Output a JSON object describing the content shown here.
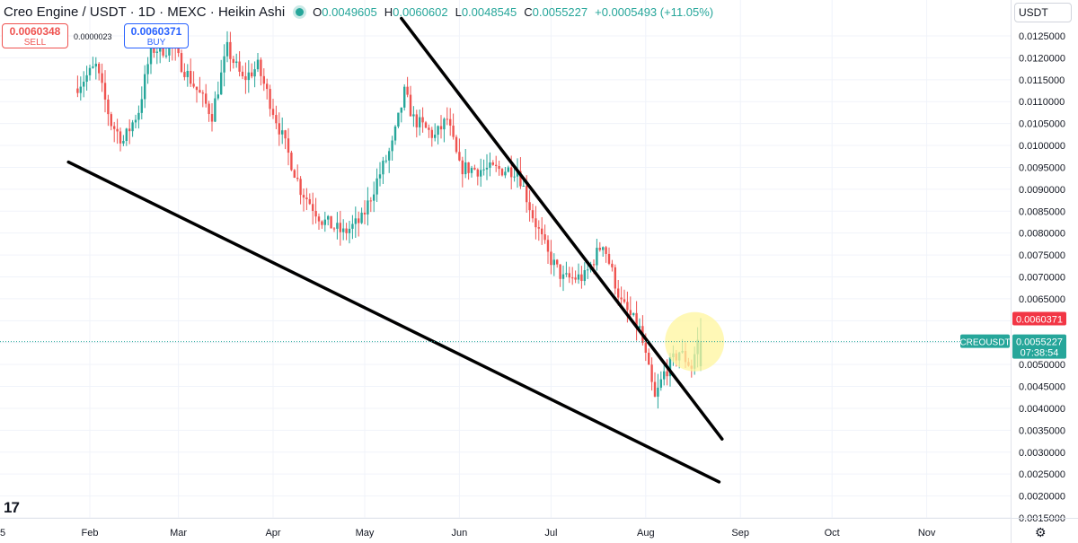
{
  "header": {
    "title": "Creo Engine / USDT · 1D · MEXC · Heikin Ashi",
    "ohlc": [
      {
        "k": "O",
        "v": "0.0049605"
      },
      {
        "k": "H",
        "v": "0.0060602"
      },
      {
        "k": "L",
        "v": "0.0048545"
      },
      {
        "k": "C",
        "v": "0.0055227"
      }
    ],
    "change": "+0.0005493 (+11.05%)"
  },
  "trade": {
    "sell_price": "0.0060348",
    "sell_label": "SELL",
    "spread": "0.0000023",
    "buy_price": "0.0060371",
    "buy_label": "BUY"
  },
  "currency_button": "USDT",
  "footer": {
    "left_partial_label": "5",
    "logo": "17",
    "settings_icon": "gear-icon"
  },
  "colors": {
    "up": "#26a69a",
    "down": "#ef5350",
    "trendline": "#000000",
    "highlight": "#fff59d",
    "price_tag_red": "#f23645"
  },
  "chart_data": {
    "type": "candlestick",
    "chart_style": "Heikin Ashi",
    "symbol": "CREOUSDT",
    "x_labels": [
      "Feb",
      "Mar",
      "Apr",
      "May",
      "Jun",
      "Jul",
      "Aug",
      "Sep",
      "Oct",
      "Nov"
    ],
    "y_axis_labels": [
      "0.0125000",
      "0.0120000",
      "0.0115000",
      "0.0110000",
      "0.0105000",
      "0.0100000",
      "0.0095000",
      "0.0090000",
      "0.0085000",
      "0.0080000",
      "0.0075000",
      "0.0070000",
      "0.0065000",
      "0.0060000",
      "0.0055000",
      "0.0050000",
      "0.0045000",
      "0.0040000",
      "0.0035000",
      "0.0030000",
      "0.0025000",
      "0.0020000",
      "0.0015000"
    ],
    "ylim": [
      0.0015,
      0.0125
    ],
    "grid": true,
    "price_tags": [
      {
        "label": "0.0060371",
        "value": 0.0060371,
        "color": "#f23645"
      },
      {
        "label": "0.0055227",
        "sub": "07:38:54",
        "value": 0.0055227,
        "color": "#26a69a",
        "symbol_label": "CREOUSDT"
      }
    ],
    "price_path": [
      {
        "date": "2024-01-27",
        "value": 0.0113
      },
      {
        "date": "2024-02-03",
        "value": 0.0118
      },
      {
        "date": "2024-02-08",
        "value": 0.0105
      },
      {
        "date": "2024-02-12",
        "value": 0.0101
      },
      {
        "date": "2024-02-17",
        "value": 0.0108
      },
      {
        "date": "2024-02-21",
        "value": 0.0122
      },
      {
        "date": "2024-02-28",
        "value": 0.0122
      },
      {
        "date": "2024-03-05",
        "value": 0.0115
      },
      {
        "date": "2024-03-12",
        "value": 0.0107
      },
      {
        "date": "2024-03-17",
        "value": 0.0122
      },
      {
        "date": "2024-03-22",
        "value": 0.0115
      },
      {
        "date": "2024-03-27",
        "value": 0.0118
      },
      {
        "date": "2024-04-03",
        "value": 0.0104
      },
      {
        "date": "2024-04-10",
        "value": 0.009
      },
      {
        "date": "2024-04-17",
        "value": 0.0083
      },
      {
        "date": "2024-04-24",
        "value": 0.008
      },
      {
        "date": "2024-04-30",
        "value": 0.0083
      },
      {
        "date": "2024-05-05",
        "value": 0.0092
      },
      {
        "date": "2024-05-10",
        "value": 0.01
      },
      {
        "date": "2024-05-14",
        "value": 0.0112
      },
      {
        "date": "2024-05-17",
        "value": 0.0106
      },
      {
        "date": "2024-05-24",
        "value": 0.0102
      },
      {
        "date": "2024-05-28",
        "value": 0.0106
      },
      {
        "date": "2024-06-01",
        "value": 0.0095
      },
      {
        "date": "2024-06-07",
        "value": 0.00945
      },
      {
        "date": "2024-06-13",
        "value": 0.00945
      },
      {
        "date": "2024-06-20",
        "value": 0.00945
      },
      {
        "date": "2024-06-25",
        "value": 0.0084
      },
      {
        "date": "2024-06-30",
        "value": 0.0075
      },
      {
        "date": "2024-07-05",
        "value": 0.00695
      },
      {
        "date": "2024-07-12",
        "value": 0.007
      },
      {
        "date": "2024-07-18",
        "value": 0.0078
      },
      {
        "date": "2024-07-24",
        "value": 0.0064
      },
      {
        "date": "2024-07-30",
        "value": 0.0058
      },
      {
        "date": "2024-08-04",
        "value": 0.0042
      },
      {
        "date": "2024-08-07",
        "value": 0.0048
      },
      {
        "date": "2024-08-12",
        "value": 0.0053
      },
      {
        "date": "2024-08-16",
        "value": 0.00495
      },
      {
        "date": "2024-08-18",
        "value": 0.00552
      }
    ],
    "trendlines": [
      {
        "name": "lower-support",
        "start": {
          "date": "2024-01-25",
          "value": 0.00962
        },
        "end": {
          "date": "2024-08-25",
          "value": 0.00232
        }
      },
      {
        "name": "upper-resistance",
        "start": {
          "date": "2024-05-13",
          "value": 0.0129
        },
        "end": {
          "date": "2024-08-26",
          "value": 0.0033
        }
      }
    ],
    "highlight": {
      "date": "2024-08-17",
      "value": 0.00552
    }
  }
}
